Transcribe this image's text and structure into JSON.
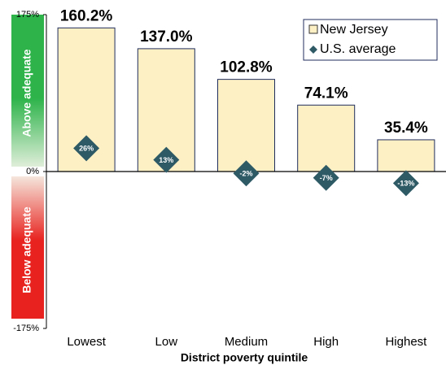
{
  "chart_data": {
    "type": "bar",
    "x_label": "District poverty quintile",
    "categories": [
      "Lowest",
      "Low",
      "Medium",
      "High",
      "Highest"
    ],
    "series": [
      {
        "name": "New Jersey",
        "color": "#fdf0c5",
        "values": [
          160.2,
          137.0,
          102.8,
          74.1,
          35.4
        ],
        "value_labels": [
          "160.2%",
          "137.0%",
          "102.8%",
          "74.1%",
          "35.4%"
        ]
      },
      {
        "name": "U.S. average",
        "color": "#2e5a66",
        "marker": "diamond",
        "values": [
          26,
          13,
          -2,
          -7,
          -13
        ],
        "value_labels": [
          "26%",
          "13%",
          "-2%",
          "-7%",
          "-13%"
        ]
      }
    ],
    "ylim": [
      -175,
      175
    ],
    "yticks": [
      {
        "value": -175,
        "label": "-175%"
      },
      {
        "value": 0,
        "label": "0%"
      },
      {
        "value": 175,
        "label": "175%"
      }
    ],
    "bands": [
      {
        "label": "Above adequate",
        "color": "#2db34a"
      },
      {
        "label": "Below adequate",
        "color": "#e8231f"
      }
    ],
    "legend": "upper right"
  }
}
